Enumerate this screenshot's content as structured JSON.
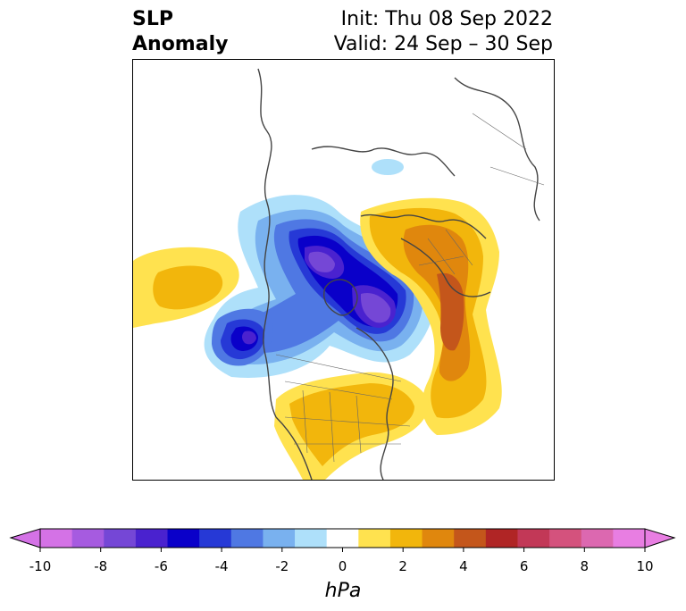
{
  "title": {
    "left_line1": "SLP",
    "left_line2": "Anomaly",
    "right_line1": "Init: Thu 08 Sep 2022",
    "right_line2": "Valid: 24 Sep – 30 Sep"
  },
  "colorbar": {
    "unit_label": "hPa",
    "tick_labels": [
      "-10",
      "-8",
      "-6",
      "-4",
      "-2",
      "0",
      "2",
      "4",
      "6",
      "8",
      "10"
    ],
    "colors": [
      "#d472e6",
      "#a65be0",
      "#7547d6",
      "#4a22cf",
      "#0a00c9",
      "#2639d6",
      "#4f78e3",
      "#79b1ef",
      "#aee0fa",
      "#ffffff",
      "#ffe24f",
      "#f2b60c",
      "#e0870d",
      "#c4561b",
      "#b02525",
      "#c23857",
      "#d4527d",
      "#dc68b0",
      "#e87ee2"
    ],
    "min_color": "#d472e6",
    "max_color": "#e87ee2"
  },
  "map_features": {
    "projection": "polar stereographic",
    "region": "North America and North Atlantic"
  }
}
